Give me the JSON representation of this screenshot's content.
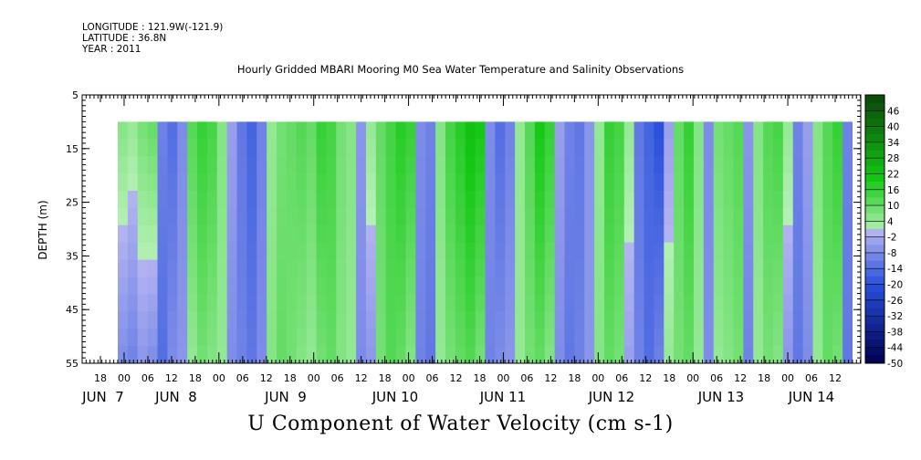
{
  "header": {
    "longitude": "LONGITUDE : 121.9W(-121.9)",
    "latitude": "LATITUDE : 36.8N",
    "year": "YEAR : 2011"
  },
  "chart_data": {
    "type": "heatmap",
    "title": "Hourly Gridded MBARI Mooring M0 Sea Water Temperature and Salinity Observations",
    "xlabel": "U Component of Water Velocity (cm s-1)",
    "ylabel": "DEPTH (m)",
    "ylim": [
      55,
      5
    ],
    "y_ticks": [
      5,
      15,
      25,
      35,
      45,
      55
    ],
    "data_depth_range": [
      10,
      55
    ],
    "x_hour_ticks": [
      "18",
      "00",
      "06",
      "12",
      "18",
      "00",
      "06",
      "12",
      "18",
      "00",
      "06",
      "12",
      "18",
      "00",
      "06",
      "12",
      "18",
      "00",
      "06",
      "12",
      "18",
      "00",
      "06",
      "12",
      "18",
      "00",
      "06",
      "12",
      "18",
      "00",
      "06",
      "12"
    ],
    "x_day_labels": [
      "JUN  7",
      "JUN  8",
      "JUN  9",
      "JUN 10",
      "JUN 11",
      "JUN 12",
      "JUN 13",
      "JUN 14"
    ],
    "colorbar": {
      "labels": [
        "46",
        "40",
        "34",
        "28",
        "22",
        "16",
        "10",
        "4",
        "-2",
        "-8",
        "-14",
        "-20",
        "-26",
        "-32",
        "-38",
        "-44",
        "-50"
      ],
      "range": [
        -50,
        52
      ],
      "step": 3,
      "colors": {
        "positive_strong": "#0a4d0a",
        "positive_mid": "#14c814",
        "positive_light": "#b4f0b4",
        "negative_light": "#b4b4f0",
        "negative_mid": "#2850dc",
        "negative_strong": "#000050"
      }
    },
    "column_profiles": [
      [
        6,
        -8
      ],
      [
        4,
        -10
      ],
      [
        8,
        -6
      ],
      [
        10,
        -8
      ],
      [
        -10,
        -14
      ],
      [
        -14,
        -8
      ],
      [
        -8,
        -6
      ],
      [
        12,
        4
      ],
      [
        16,
        8
      ],
      [
        14,
        6
      ],
      [
        6,
        4
      ],
      [
        -4,
        -8
      ],
      [
        -12,
        -10
      ],
      [
        -16,
        -12
      ],
      [
        -10,
        -8
      ],
      [
        4,
        6
      ],
      [
        8,
        10
      ],
      [
        10,
        8
      ],
      [
        12,
        6
      ],
      [
        10,
        4
      ],
      [
        16,
        8
      ],
      [
        14,
        10
      ],
      [
        8,
        6
      ],
      [
        6,
        4
      ],
      [
        -6,
        -8
      ],
      [
        4,
        -6
      ],
      [
        10,
        8
      ],
      [
        14,
        12
      ],
      [
        18,
        10
      ],
      [
        16,
        6
      ],
      [
        -8,
        -10
      ],
      [
        -10,
        -12
      ],
      [
        6,
        4
      ],
      [
        14,
        8
      ],
      [
        18,
        10
      ],
      [
        22,
        12
      ],
      [
        20,
        8
      ],
      [
        -8,
        -10
      ],
      [
        -14,
        -8
      ],
      [
        -10,
        -6
      ],
      [
        4,
        4
      ],
      [
        12,
        8
      ],
      [
        20,
        10
      ],
      [
        16,
        6
      ],
      [
        -4,
        -8
      ],
      [
        -10,
        -12
      ],
      [
        -12,
        -10
      ],
      [
        -6,
        -6
      ],
      [
        4,
        6
      ],
      [
        16,
        10
      ],
      [
        14,
        8
      ],
      [
        4,
        -4
      ],
      [
        -12,
        -10
      ],
      [
        -16,
        -14
      ],
      [
        -20,
        -10
      ],
      [
        -4,
        4
      ],
      [
        10,
        8
      ],
      [
        16,
        10
      ],
      [
        6,
        4
      ],
      [
        -8,
        -8
      ],
      [
        8,
        4
      ],
      [
        10,
        6
      ],
      [
        12,
        8
      ],
      [
        -6,
        -10
      ],
      [
        6,
        4
      ],
      [
        12,
        8
      ],
      [
        14,
        6
      ],
      [
        4,
        -6
      ],
      [
        -10,
        -12
      ],
      [
        -4,
        -8
      ],
      [
        6,
        4
      ],
      [
        12,
        10
      ],
      [
        16,
        8
      ],
      [
        -10,
        -12
      ]
    ]
  }
}
